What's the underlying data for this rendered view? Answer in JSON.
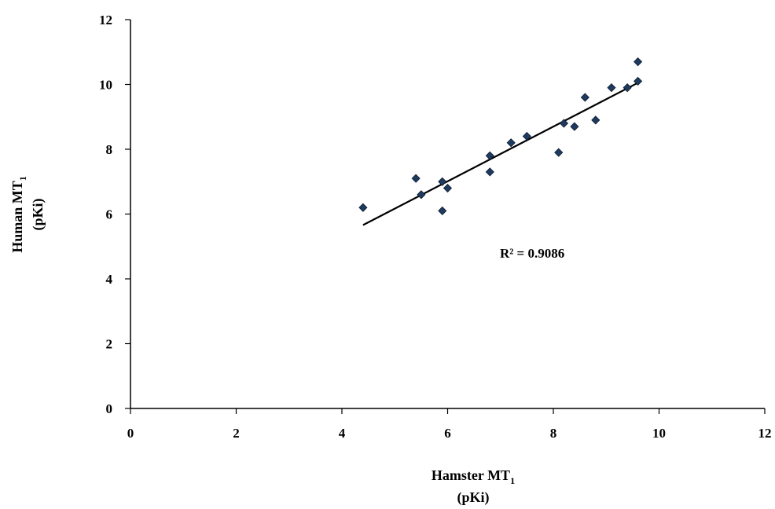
{
  "chart_data": {
    "type": "scatter",
    "x_axis_label": {
      "line1": "Hamster MT",
      "subscript": "1",
      "line2": "(pKi)"
    },
    "y_axis_label": {
      "line1": "Human MT",
      "subscript": "1",
      "line2": "(pKi)"
    },
    "xlim": [
      0,
      12
    ],
    "ylim": [
      0,
      12
    ],
    "x_ticks": [
      0,
      2,
      4,
      6,
      8,
      10,
      12
    ],
    "y_ticks": [
      0,
      2,
      4,
      6,
      8,
      10,
      12
    ],
    "grid": false,
    "legend": "none",
    "marker": "diamond",
    "marker_color": "#1f3a5f",
    "points": [
      {
        "x": 4.4,
        "y": 6.2
      },
      {
        "x": 5.4,
        "y": 7.1
      },
      {
        "x": 5.5,
        "y": 6.6
      },
      {
        "x": 5.9,
        "y": 7.0
      },
      {
        "x": 5.9,
        "y": 6.1
      },
      {
        "x": 6.0,
        "y": 6.8
      },
      {
        "x": 6.8,
        "y": 7.8
      },
      {
        "x": 6.8,
        "y": 7.3
      },
      {
        "x": 7.2,
        "y": 8.2
      },
      {
        "x": 7.5,
        "y": 8.4
      },
      {
        "x": 8.1,
        "y": 7.9
      },
      {
        "x": 8.2,
        "y": 8.8
      },
      {
        "x": 8.4,
        "y": 8.7
      },
      {
        "x": 8.6,
        "y": 9.6
      },
      {
        "x": 8.8,
        "y": 8.9
      },
      {
        "x": 9.1,
        "y": 9.9
      },
      {
        "x": 9.4,
        "y": 9.9
      },
      {
        "x": 9.6,
        "y": 10.1
      },
      {
        "x": 9.6,
        "y": 10.7
      }
    ],
    "trendline": {
      "type": "linear",
      "from": {
        "x": 4.4,
        "y": 5.66
      },
      "to": {
        "x": 9.6,
        "y": 10.05
      },
      "color": "#000000"
    },
    "annotation": {
      "text": "R² = 0.9086",
      "x": 7.6,
      "y": 4.8
    }
  }
}
